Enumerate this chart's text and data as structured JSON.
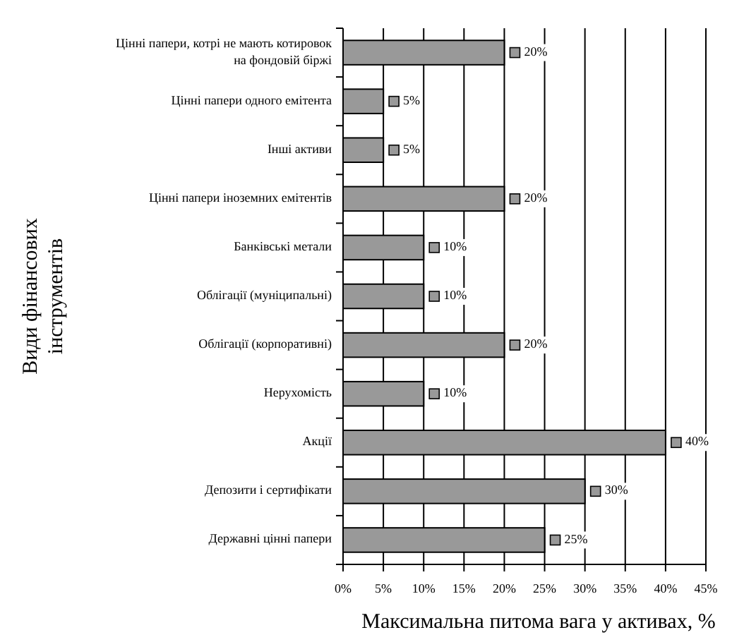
{
  "chart_data": {
    "type": "bar",
    "orientation": "horizontal",
    "xlabel": "Максимальна питома вага у активах, %",
    "ylabel": "Види фінансових інструментів",
    "categories": [
      "Цінні папери, котрі не мають котировок на фондовій біржі",
      "Цінні папери одного емітента",
      "Інші активи",
      "Цінні папери іноземних емітентів",
      "Банківські метали",
      "Облігації (муніципальні)",
      "Облігації (корпоративні)",
      "Нерухомість",
      "Акції",
      "Депозити і сертифікати",
      "Державні цінні папери"
    ],
    "values": [
      20,
      5,
      5,
      20,
      10,
      10,
      20,
      10,
      40,
      30,
      25
    ],
    "value_labels": [
      "20%",
      "5%",
      "5%",
      "20%",
      "10%",
      "10%",
      "20%",
      "10%",
      "40%",
      "30%",
      "25%"
    ],
    "color": "#999999",
    "xlim": [
      0,
      45
    ],
    "xticks": [
      {
        "value": 0,
        "label": "0%"
      },
      {
        "value": 5,
        "label": "5%"
      },
      {
        "value": 10,
        "label": "10%"
      },
      {
        "value": 15,
        "label": "15%"
      },
      {
        "value": 20,
        "label": "20%"
      },
      {
        "value": 25,
        "label": "25%"
      },
      {
        "value": 30,
        "label": "30%"
      },
      {
        "value": 35,
        "label": "35%"
      },
      {
        "value": 40,
        "label": "40%"
      },
      {
        "value": 45,
        "label": "45%"
      }
    ],
    "grid": "x"
  }
}
